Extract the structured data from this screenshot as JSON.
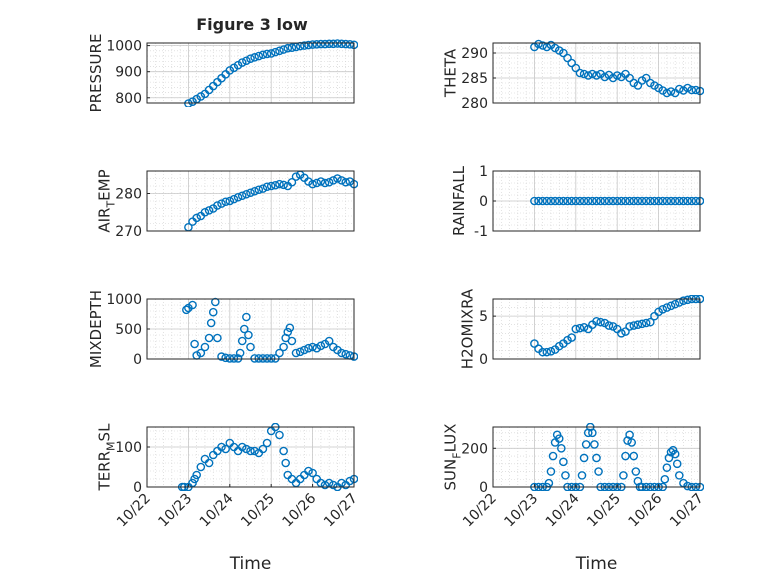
{
  "title": "Figure 3 low",
  "colors": {
    "marker": "#0072BD",
    "grid": "#d0d0d0",
    "axis": "#262626"
  },
  "chart_data": [
    {
      "type": "scatter",
      "ylabel": "PRESSURE",
      "ylabel_sub": "",
      "ylabel_tail": "",
      "ylim": [
        780,
        1010
      ],
      "yticks": [
        800,
        900,
        1000
      ],
      "ytick_labels": [
        "800",
        "900",
        "1000"
      ],
      "xlim": [
        0,
        5
      ],
      "xticks": [],
      "xtick_labels": [],
      "xlabel": "",
      "x": [
        1.0,
        1.1,
        1.2,
        1.3,
        1.4,
        1.5,
        1.6,
        1.7,
        1.8,
        1.9,
        2.0,
        2.1,
        2.2,
        2.3,
        2.4,
        2.5,
        2.6,
        2.7,
        2.8,
        2.9,
        3.0,
        3.1,
        3.2,
        3.3,
        3.4,
        3.5,
        3.6,
        3.7,
        3.8,
        3.9,
        4.0,
        4.1,
        4.2,
        4.3,
        4.4,
        4.5,
        4.6,
        4.7,
        4.8,
        4.9,
        5.0
      ],
      "y": [
        778,
        785,
        795,
        805,
        815,
        830,
        845,
        860,
        875,
        890,
        905,
        915,
        925,
        935,
        942,
        950,
        955,
        960,
        965,
        968,
        970,
        975,
        980,
        985,
        990,
        992,
        995,
        998,
        1000,
        1002,
        1004,
        1005,
        1006,
        1006,
        1007,
        1007,
        1008,
        1007,
        1006,
        1005,
        1003
      ]
    },
    {
      "type": "scatter",
      "ylabel": "THETA",
      "ylabel_sub": "",
      "ylabel_tail": "",
      "ylim": [
        280,
        292
      ],
      "yticks": [
        280,
        285,
        290
      ],
      "ytick_labels": [
        "280",
        "285",
        "290"
      ],
      "xlim": [
        0,
        5
      ],
      "xticks": [],
      "xtick_labels": [],
      "xlabel": "",
      "x": [
        1.0,
        1.1,
        1.2,
        1.3,
        1.4,
        1.5,
        1.6,
        1.7,
        1.8,
        1.9,
        2.0,
        2.1,
        2.2,
        2.3,
        2.4,
        2.5,
        2.6,
        2.7,
        2.8,
        2.9,
        3.0,
        3.1,
        3.2,
        3.3,
        3.4,
        3.5,
        3.6,
        3.7,
        3.8,
        3.9,
        4.0,
        4.1,
        4.2,
        4.3,
        4.4,
        4.5,
        4.6,
        4.7,
        4.8,
        4.9,
        5.0
      ],
      "y": [
        291.2,
        291.8,
        291.5,
        291.2,
        291.6,
        291.0,
        290.5,
        290.0,
        289.0,
        288.0,
        287.0,
        286.0,
        285.8,
        285.5,
        285.8,
        285.5,
        285.8,
        285.2,
        285.6,
        285.0,
        285.5,
        285.2,
        285.8,
        285.0,
        284.0,
        283.5,
        284.5,
        285.0,
        284.0,
        283.5,
        283.0,
        282.5,
        282.0,
        282.3,
        282.0,
        282.8,
        282.5,
        283.0,
        282.6,
        282.6,
        282.4
      ]
    },
    {
      "type": "scatter",
      "ylabel": "AIR",
      "ylabel_sub": "T",
      "ylabel_tail": "EMP",
      "ylim": [
        270,
        286
      ],
      "yticks": [
        270,
        280
      ],
      "ytick_labels": [
        "270",
        "280"
      ],
      "xlim": [
        0,
        5
      ],
      "xticks": [],
      "xtick_labels": [],
      "xlabel": "",
      "x": [
        1.0,
        1.1,
        1.2,
        1.3,
        1.4,
        1.5,
        1.6,
        1.7,
        1.8,
        1.9,
        2.0,
        2.1,
        2.2,
        2.3,
        2.4,
        2.5,
        2.6,
        2.7,
        2.8,
        2.9,
        3.0,
        3.1,
        3.2,
        3.3,
        3.4,
        3.5,
        3.6,
        3.7,
        3.8,
        3.9,
        4.0,
        4.1,
        4.2,
        4.3,
        4.4,
        4.5,
        4.6,
        4.7,
        4.8,
        4.9,
        5.0
      ],
      "y": [
        271.0,
        272.5,
        273.5,
        274.0,
        275.0,
        275.5,
        276.0,
        276.8,
        277.3,
        277.8,
        278.0,
        278.5,
        279.0,
        279.4,
        279.8,
        280.2,
        280.6,
        281.0,
        281.3,
        281.8,
        282.0,
        282.2,
        282.5,
        282.3,
        282.0,
        283.0,
        284.5,
        285.0,
        284.2,
        283.2,
        282.5,
        282.8,
        283.2,
        282.8,
        283.0,
        283.5,
        284.0,
        283.5,
        283.0,
        283.2,
        282.5
      ]
    },
    {
      "type": "scatter",
      "ylabel": "RAINFALL",
      "ylabel_sub": "",
      "ylabel_tail": "",
      "ylim": [
        -1,
        1
      ],
      "yticks": [
        -1,
        0,
        1
      ],
      "ytick_labels": [
        "-1",
        "0",
        "1"
      ],
      "xlim": [
        0,
        5
      ],
      "xticks": [],
      "xtick_labels": [],
      "xlabel": "",
      "x": [
        1.0,
        1.1,
        1.2,
        1.3,
        1.4,
        1.5,
        1.6,
        1.7,
        1.8,
        1.9,
        2.0,
        2.1,
        2.2,
        2.3,
        2.4,
        2.5,
        2.6,
        2.7,
        2.8,
        2.9,
        3.0,
        3.1,
        3.2,
        3.3,
        3.4,
        3.5,
        3.6,
        3.7,
        3.8,
        3.9,
        4.0,
        4.1,
        4.2,
        4.3,
        4.4,
        4.5,
        4.6,
        4.7,
        4.8,
        4.9,
        5.0
      ],
      "y": [
        0,
        0,
        0,
        0,
        0,
        0,
        0,
        0,
        0,
        0,
        0,
        0,
        0,
        0,
        0,
        0,
        0,
        0,
        0,
        0,
        0,
        0,
        0,
        0,
        0,
        0,
        0,
        0,
        0,
        0,
        0,
        0,
        0,
        0,
        0,
        0,
        0,
        0,
        0,
        0,
        0
      ]
    },
    {
      "type": "scatter",
      "ylabel": "MIXDEPTH",
      "ylabel_sub": "",
      "ylabel_tail": "",
      "ylim": [
        0,
        1000
      ],
      "yticks": [
        0,
        500,
        1000
      ],
      "ytick_labels": [
        "0",
        "500",
        "1000"
      ],
      "xlim": [
        0,
        5
      ],
      "xticks": [],
      "xtick_labels": [],
      "xlabel": "",
      "x": [
        0.95,
        1.0,
        1.1,
        1.15,
        1.2,
        1.3,
        1.4,
        1.5,
        1.55,
        1.6,
        1.65,
        1.7,
        1.8,
        1.9,
        2.0,
        2.1,
        2.2,
        2.25,
        2.3,
        2.35,
        2.4,
        2.45,
        2.5,
        2.6,
        2.7,
        2.8,
        2.9,
        3.0,
        3.1,
        3.2,
        3.3,
        3.35,
        3.4,
        3.45,
        3.5,
        3.6,
        3.7,
        3.8,
        3.9,
        4.0,
        4.1,
        4.2,
        4.3,
        4.4,
        4.5,
        4.6,
        4.7,
        4.8,
        4.9,
        5.0
      ],
      "y": [
        820,
        850,
        900,
        250,
        60,
        100,
        200,
        350,
        600,
        780,
        950,
        350,
        40,
        20,
        10,
        10,
        10,
        100,
        300,
        500,
        700,
        400,
        200,
        10,
        10,
        10,
        10,
        10,
        10,
        100,
        200,
        350,
        450,
        520,
        300,
        100,
        120,
        150,
        180,
        200,
        180,
        220,
        250,
        300,
        200,
        150,
        100,
        80,
        60,
        40
      ]
    },
    {
      "type": "scatter",
      "ylabel": "H2OMIXRA",
      "ylabel_sub": "",
      "ylabel_tail": "",
      "ylim": [
        0,
        7
      ],
      "yticks": [
        0,
        5
      ],
      "ytick_labels": [
        "0",
        "5"
      ],
      "xlim": [
        0,
        5
      ],
      "xticks": [],
      "xtick_labels": [],
      "xlabel": "",
      "x": [
        1.0,
        1.1,
        1.2,
        1.3,
        1.4,
        1.5,
        1.6,
        1.7,
        1.8,
        1.9,
        2.0,
        2.1,
        2.2,
        2.3,
        2.4,
        2.5,
        2.6,
        2.7,
        2.8,
        2.9,
        3.0,
        3.1,
        3.2,
        3.3,
        3.4,
        3.5,
        3.6,
        3.7,
        3.8,
        3.9,
        4.0,
        4.1,
        4.2,
        4.3,
        4.4,
        4.5,
        4.6,
        4.7,
        4.8,
        4.9,
        5.0
      ],
      "y": [
        1.8,
        1.2,
        0.8,
        0.8,
        0.9,
        1.1,
        1.5,
        1.8,
        2.2,
        2.5,
        3.5,
        3.6,
        3.7,
        3.5,
        4.0,
        4.4,
        4.3,
        4.2,
        3.9,
        3.8,
        3.5,
        3.0,
        3.2,
        3.8,
        3.9,
        4.0,
        4.1,
        4.2,
        4.3,
        5.0,
        5.5,
        5.8,
        6.0,
        6.2,
        6.4,
        6.6,
        6.8,
        6.9,
        7.0,
        7.0,
        7.0
      ]
    },
    {
      "type": "scatter",
      "ylabel": "TERR",
      "ylabel_sub": "M",
      "ylabel_tail": "SL",
      "ylim": [
        0,
        150
      ],
      "yticks": [
        0,
        100
      ],
      "ytick_labels": [
        "0",
        "100"
      ],
      "xlim": [
        0,
        5
      ],
      "xticks": [
        0,
        1,
        2,
        3,
        4,
        5
      ],
      "xtick_labels": [
        "10/22",
        "10/23",
        "10/24",
        "10/25",
        "10/26",
        "10/27"
      ],
      "xlabel": "Time",
      "x": [
        0.85,
        0.9,
        1.0,
        1.1,
        1.15,
        1.2,
        1.3,
        1.4,
        1.5,
        1.6,
        1.7,
        1.8,
        1.9,
        2.0,
        2.1,
        2.2,
        2.3,
        2.4,
        2.5,
        2.6,
        2.7,
        2.8,
        2.9,
        3.0,
        3.1,
        3.2,
        3.3,
        3.35,
        3.4,
        3.5,
        3.6,
        3.7,
        3.8,
        3.9,
        4.0,
        4.1,
        4.2,
        4.3,
        4.4,
        4.5,
        4.6,
        4.7,
        4.8,
        4.9,
        5.0
      ],
      "y": [
        0,
        0,
        0,
        10,
        20,
        30,
        50,
        70,
        60,
        80,
        90,
        100,
        95,
        110,
        100,
        90,
        100,
        95,
        90,
        90,
        85,
        95,
        110,
        140,
        150,
        130,
        90,
        60,
        30,
        20,
        10,
        20,
        30,
        40,
        35,
        20,
        10,
        5,
        10,
        5,
        0,
        10,
        5,
        15,
        20
      ]
    },
    {
      "type": "scatter",
      "ylabel": "SUN",
      "ylabel_sub": "F",
      "ylabel_tail": "LUX",
      "ylim": [
        0,
        310
      ],
      "yticks": [
        0,
        200
      ],
      "ytick_labels": [
        "0",
        "200"
      ],
      "xlim": [
        0,
        5
      ],
      "xticks": [
        0,
        1,
        2,
        3,
        4,
        5
      ],
      "xtick_labels": [
        "10/22",
        "10/23",
        "10/24",
        "10/25",
        "10/26",
        "10/27"
      ],
      "xlabel": "Time",
      "x": [
        1.0,
        1.1,
        1.2,
        1.3,
        1.35,
        1.4,
        1.45,
        1.5,
        1.55,
        1.6,
        1.65,
        1.7,
        1.75,
        1.8,
        1.9,
        2.0,
        2.1,
        2.15,
        2.2,
        2.25,
        2.3,
        2.35,
        2.4,
        2.45,
        2.5,
        2.55,
        2.6,
        2.7,
        2.8,
        2.9,
        3.0,
        3.1,
        3.15,
        3.2,
        3.25,
        3.3,
        3.35,
        3.4,
        3.45,
        3.5,
        3.55,
        3.6,
        3.7,
        3.8,
        3.9,
        4.0,
        4.1,
        4.15,
        4.2,
        4.25,
        4.3,
        4.35,
        4.4,
        4.45,
        4.5,
        4.6,
        4.7,
        4.8,
        4.9,
        5.0
      ],
      "y": [
        0,
        0,
        0,
        0,
        20,
        80,
        160,
        230,
        270,
        250,
        200,
        130,
        60,
        0,
        0,
        0,
        0,
        60,
        150,
        220,
        280,
        310,
        280,
        220,
        150,
        80,
        0,
        0,
        0,
        0,
        0,
        0,
        60,
        160,
        240,
        270,
        230,
        160,
        80,
        30,
        0,
        0,
        0,
        0,
        0,
        0,
        0,
        40,
        100,
        150,
        180,
        190,
        170,
        120,
        60,
        20,
        5,
        0,
        0,
        0
      ]
    }
  ]
}
